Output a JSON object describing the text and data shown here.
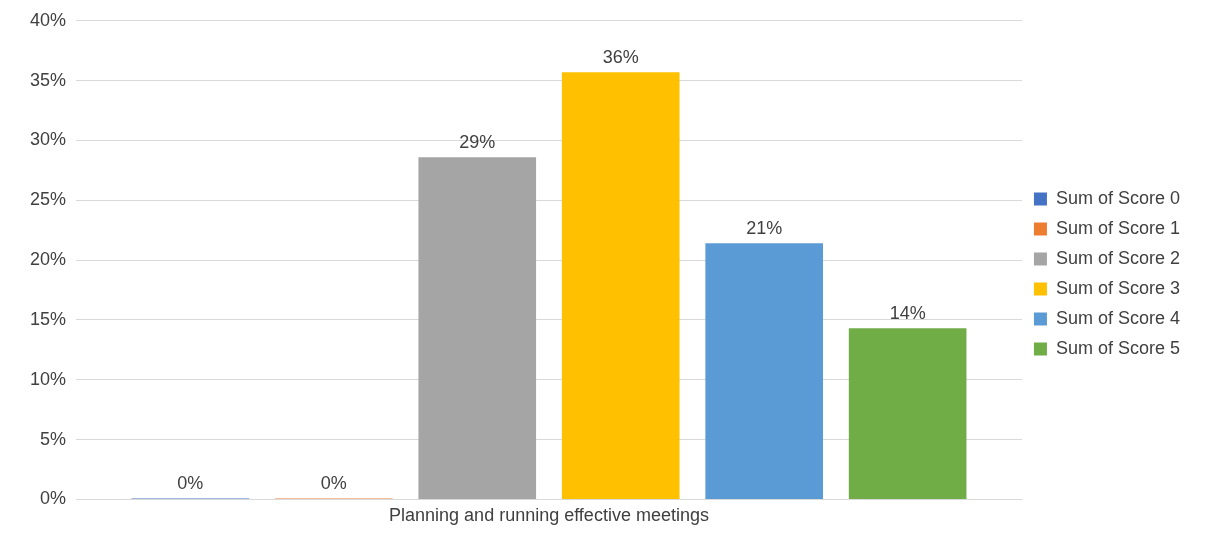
{
  "chart_data": {
    "type": "bar",
    "categories": [
      "Planning and running effective meetings"
    ],
    "series": [
      {
        "name": "Sum of Score 0",
        "color": "#4472c4",
        "values": [
          0
        ],
        "value_labels": [
          "0%"
        ]
      },
      {
        "name": "Sum of Score 1",
        "color": "#ed7d31",
        "values": [
          0
        ],
        "value_labels": [
          "0%"
        ]
      },
      {
        "name": "Sum of Score 2",
        "color": "#a5a5a5",
        "values": [
          28.6
        ],
        "value_labels": [
          "29%"
        ]
      },
      {
        "name": "Sum of Score 3",
        "color": "#ffc000",
        "values": [
          35.7
        ],
        "value_labels": [
          "36%"
        ]
      },
      {
        "name": "Sum of Score 4",
        "color": "#5b9bd5",
        "values": [
          21.4
        ],
        "value_labels": [
          "21%"
        ]
      },
      {
        "name": "Sum of Score 5",
        "color": "#70ad47",
        "values": [
          14.3
        ],
        "value_labels": [
          "14%"
        ]
      }
    ],
    "ylim": [
      0,
      40
    ],
    "yticks": [
      {
        "value": 0,
        "label": "0%"
      },
      {
        "value": 5,
        "label": "5%"
      },
      {
        "value": 10,
        "label": "10%"
      },
      {
        "value": 15,
        "label": "15%"
      },
      {
        "value": 20,
        "label": "20%"
      },
      {
        "value": 25,
        "label": "25%"
      },
      {
        "value": 30,
        "label": "30%"
      },
      {
        "value": 35,
        "label": "35%"
      },
      {
        "value": 40,
        "label": "40%"
      }
    ],
    "grid": "y",
    "legend": "right"
  }
}
